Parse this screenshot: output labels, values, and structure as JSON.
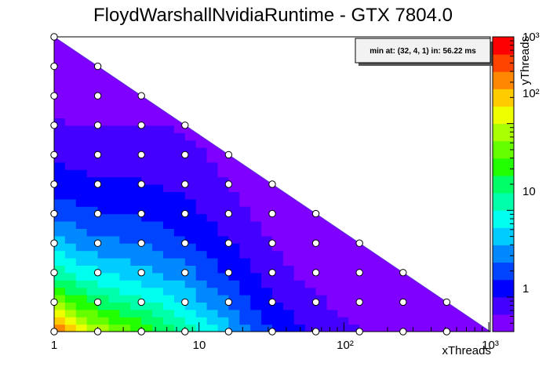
{
  "chart_data": {
    "type": "heatmap",
    "title": "FloydWarshallNvidiaRuntime - GTX 7804.0",
    "xlabel": "xThreads",
    "ylabel": "yThreads",
    "x_scale": "log2",
    "y_scale": "log2",
    "xlim": [
      1,
      1024
    ],
    "ylim": [
      1,
      1024
    ],
    "x_ticks": [
      "1",
      "10",
      "10²",
      "10³"
    ],
    "colorbar": {
      "scale": "log",
      "range": [
        0.4,
        1000
      ],
      "ticks": [
        "1",
        "10",
        "10²",
        "10³"
      ],
      "palette": [
        "#7f00ff",
        "#4400ff",
        "#0000ff",
        "#0044ff",
        "#0088ff",
        "#00ccff",
        "#00ffee",
        "#00ffaa",
        "#00ff66",
        "#22ff00",
        "#66ff00",
        "#aaff00",
        "#eeff00",
        "#ffcc00",
        "#ff8800",
        "#ff4400",
        "#ff0000"
      ]
    },
    "annotation": "min at: (32, 4, 1) in: 56.22 ms",
    "minimum": {
      "x": 32,
      "y": 4,
      "z": 1,
      "runtime_ms": 56.22
    },
    "points": [
      {
        "x": 1,
        "y": 1
      },
      {
        "x": 2,
        "y": 1
      },
      {
        "x": 4,
        "y": 1
      },
      {
        "x": 8,
        "y": 1
      },
      {
        "x": 16,
        "y": 1
      },
      {
        "x": 32,
        "y": 1
      },
      {
        "x": 64,
        "y": 1
      },
      {
        "x": 128,
        "y": 1
      },
      {
        "x": 256,
        "y": 1
      },
      {
        "x": 512,
        "y": 1
      },
      {
        "x": 1,
        "y": 2
      },
      {
        "x": 2,
        "y": 2
      },
      {
        "x": 4,
        "y": 2
      },
      {
        "x": 8,
        "y": 2
      },
      {
        "x": 16,
        "y": 2
      },
      {
        "x": 32,
        "y": 2
      },
      {
        "x": 64,
        "y": 2
      },
      {
        "x": 128,
        "y": 2
      },
      {
        "x": 256,
        "y": 2
      },
      {
        "x": 512,
        "y": 2
      },
      {
        "x": 1,
        "y": 4
      },
      {
        "x": 2,
        "y": 4
      },
      {
        "x": 4,
        "y": 4
      },
      {
        "x": 8,
        "y": 4
      },
      {
        "x": 16,
        "y": 4
      },
      {
        "x": 32,
        "y": 4
      },
      {
        "x": 64,
        "y": 4
      },
      {
        "x": 128,
        "y": 4
      },
      {
        "x": 256,
        "y": 4
      },
      {
        "x": 1,
        "y": 8
      },
      {
        "x": 2,
        "y": 8
      },
      {
        "x": 4,
        "y": 8
      },
      {
        "x": 8,
        "y": 8
      },
      {
        "x": 16,
        "y": 8
      },
      {
        "x": 32,
        "y": 8
      },
      {
        "x": 64,
        "y": 8
      },
      {
        "x": 128,
        "y": 8
      },
      {
        "x": 1,
        "y": 16
      },
      {
        "x": 2,
        "y": 16
      },
      {
        "x": 4,
        "y": 16
      },
      {
        "x": 8,
        "y": 16
      },
      {
        "x": 16,
        "y": 16
      },
      {
        "x": 32,
        "y": 16
      },
      {
        "x": 64,
        "y": 16
      },
      {
        "x": 1,
        "y": 32
      },
      {
        "x": 2,
        "y": 32
      },
      {
        "x": 4,
        "y": 32
      },
      {
        "x": 8,
        "y": 32
      },
      {
        "x": 16,
        "y": 32
      },
      {
        "x": 32,
        "y": 32
      },
      {
        "x": 1,
        "y": 64
      },
      {
        "x": 2,
        "y": 64
      },
      {
        "x": 4,
        "y": 64
      },
      {
        "x": 8,
        "y": 64
      },
      {
        "x": 16,
        "y": 64
      },
      {
        "x": 1,
        "y": 128
      },
      {
        "x": 2,
        "y": 128
      },
      {
        "x": 4,
        "y": 128
      },
      {
        "x": 8,
        "y": 128
      },
      {
        "x": 1,
        "y": 256
      },
      {
        "x": 2,
        "y": 256
      },
      {
        "x": 4,
        "y": 256
      },
      {
        "x": 1,
        "y": 512
      },
      {
        "x": 2,
        "y": 512
      },
      {
        "x": 1,
        "y": 1024
      }
    ]
  }
}
